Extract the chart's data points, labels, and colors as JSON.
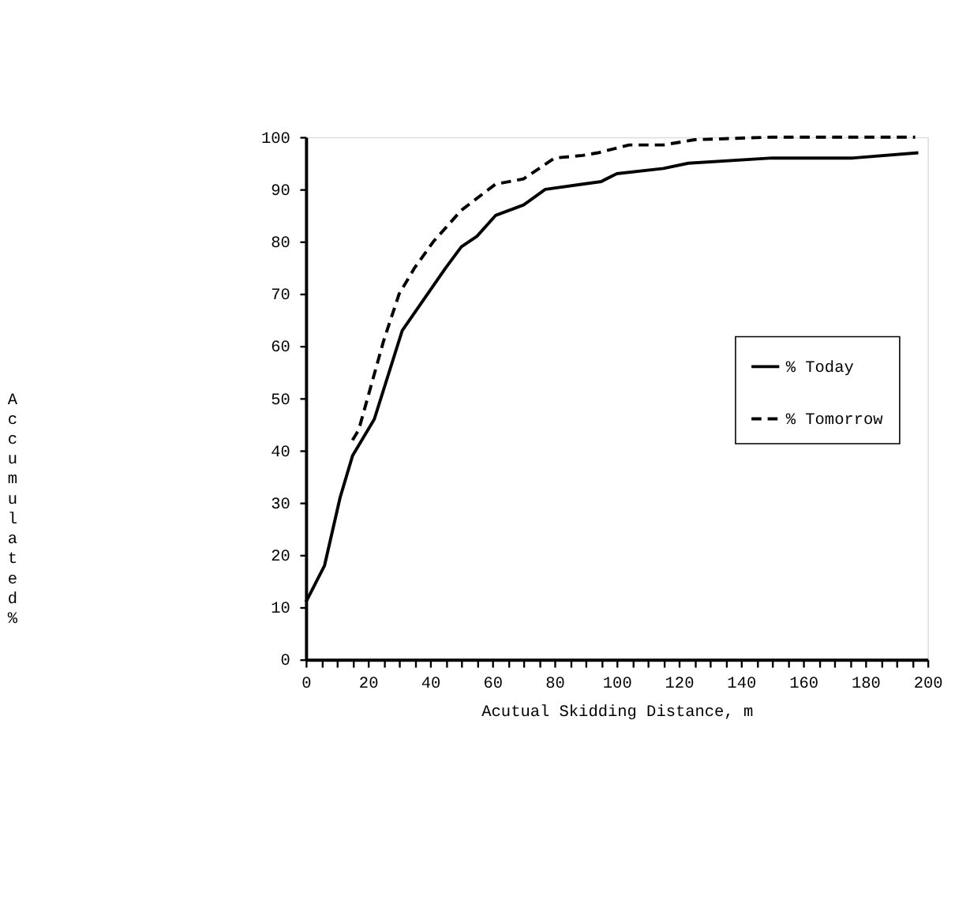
{
  "chart_data": {
    "type": "line",
    "xlabel": "Acutual Skidding Distance, m",
    "ylabel": "Accumulated %",
    "xlim": [
      0,
      200
    ],
    "ylim": [
      0,
      100
    ],
    "xticks": [
      0,
      {
        "value": 5,
        "label": null
      },
      {
        "value": 10,
        "label": null
      },
      {
        "value": 15,
        "label": null
      },
      20,
      {
        "value": 25,
        "label": null
      },
      {
        "value": 30,
        "label": null
      },
      {
        "value": 35,
        "label": null
      },
      40,
      {
        "value": 45,
        "label": null
      },
      {
        "value": 50,
        "label": null
      },
      {
        "value": 55,
        "label": null
      },
      60,
      {
        "value": 65,
        "label": null
      },
      {
        "value": 70,
        "label": null
      },
      {
        "value": 75,
        "label": null
      },
      80,
      {
        "value": 85,
        "label": null
      },
      {
        "value": 90,
        "label": null
      },
      {
        "value": 95,
        "label": null
      },
      100,
      {
        "value": 105,
        "label": null
      },
      {
        "value": 110,
        "label": null
      },
      {
        "value": 115,
        "label": null
      },
      120,
      {
        "value": 125,
        "label": null
      },
      {
        "value": 130,
        "label": null
      },
      {
        "value": 135,
        "label": null
      },
      140,
      {
        "value": 145,
        "label": null
      },
      {
        "value": 150,
        "label": null
      },
      {
        "value": 155,
        "label": null
      },
      160,
      {
        "value": 165,
        "label": null
      },
      {
        "value": 170,
        "label": null
      },
      {
        "value": 175,
        "label": null
      },
      180,
      {
        "value": 185,
        "label": null
      },
      {
        "value": 190,
        "label": null
      },
      {
        "value": 195,
        "label": null
      },
      200
    ],
    "yticks": [
      0,
      10,
      20,
      30,
      40,
      50,
      60,
      70,
      80,
      90,
      100
    ],
    "grid": false,
    "legend": "right",
    "marker": "none",
    "series": [
      {
        "name": "% Today",
        "color": "#000000",
        "line_style": "solid",
        "x": [
          0,
          6,
          11,
          15,
          22,
          31,
          38,
          45,
          50,
          55,
          61,
          70,
          77,
          89,
          95,
          100,
          115,
          123,
          150,
          176,
          197
        ],
        "values": [
          11,
          18,
          31,
          39,
          46,
          63,
          69,
          75,
          79,
          81,
          85,
          87,
          90,
          91,
          91.5,
          93,
          94,
          95,
          96,
          96,
          97
        ]
      },
      {
        "name": "% Tomorrow",
        "color": "#000000",
        "line_style": "dashed",
        "x": [
          15,
          17,
          25,
          30,
          35,
          41,
          50,
          61,
          70,
          80,
          89,
          94,
          104,
          115,
          125,
          150,
          196
        ],
        "values": [
          42,
          44,
          61,
          70,
          75,
          80,
          86,
          91,
          92,
          96,
          96.5,
          97,
          98.5,
          98.5,
          99.5,
          100,
          100
        ]
      }
    ]
  }
}
